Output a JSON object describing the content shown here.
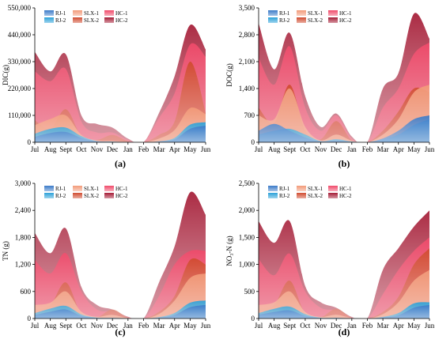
{
  "figure": {
    "months": [
      "Jul",
      "Aug",
      "Sept",
      "Oct",
      "Nov",
      "Dec",
      "Jan",
      "Feb",
      "Mar",
      "Apr",
      "May",
      "Jun"
    ],
    "legend": [
      "RJ-1",
      "RJ-2",
      "SLX-1",
      "SLX-2",
      "HC-1",
      "HC-2"
    ],
    "series_colors": {
      "RJ-1": "#3a7ac8",
      "RJ-2": "#2aa0d8",
      "SLX-1": "#f29a78",
      "SLX-2": "#d04a2e",
      "HC-1": "#f04a6a",
      "HC-2": "#a41a34"
    }
  },
  "chart_data": [
    {
      "type": "area",
      "panel_label": "(a)",
      "ylabel": "DIC(g)",
      "ylim": [
        0,
        550000
      ],
      "yticks": [
        "0",
        "110,000",
        "220,000",
        "330,000",
        "440,000",
        "550,000"
      ],
      "x": [
        "Jul",
        "Aug",
        "Sept",
        "Oct",
        "Nov",
        "Dec",
        "Jan",
        "Feb",
        "Mar",
        "Apr",
        "May",
        "Jun"
      ],
      "series": [
        {
          "name": "RJ-1",
          "values": [
            22000,
            38000,
            42000,
            18000,
            4000,
            2000,
            1000,
            0,
            3000,
            12000,
            55000,
            68000
          ]
        },
        {
          "name": "RJ-2",
          "values": [
            35000,
            55000,
            60000,
            25000,
            5000,
            3000,
            1000,
            0,
            4000,
            18000,
            72000,
            82000
          ]
        },
        {
          "name": "SLX-1",
          "values": [
            70000,
            95000,
            110000,
            30000,
            8000,
            6000,
            2000,
            0,
            15000,
            50000,
            140000,
            115000
          ]
        },
        {
          "name": "SLX-2",
          "values": [
            90000,
            55000,
            135000,
            25000,
            10000,
            30000,
            5000,
            0,
            30000,
            85000,
            330000,
            120000
          ]
        },
        {
          "name": "HC-1",
          "values": [
            290000,
            250000,
            300000,
            85000,
            40000,
            40000,
            10000,
            0,
            100000,
            200000,
            400000,
            350000
          ]
        },
        {
          "name": "HC-2",
          "values": [
            370000,
            290000,
            360000,
            110000,
            75000,
            60000,
            15000,
            0,
            120000,
            270000,
            480000,
            380000
          ]
        }
      ]
    },
    {
      "type": "area",
      "panel_label": "(b)",
      "ylabel": "DOC(g)",
      "ylim": [
        0,
        3500
      ],
      "yticks": [
        "0",
        "700",
        "1,400",
        "2,100",
        "2,800",
        "3,500"
      ],
      "x": [
        "Jul",
        "Aug",
        "Sept",
        "Oct",
        "Nov",
        "Dec",
        "Jan",
        "Feb",
        "Mar",
        "Apr",
        "May",
        "Jun"
      ],
      "series": [
        {
          "name": "RJ-1",
          "values": [
            300,
            480,
            300,
            130,
            20,
            50,
            10,
            0,
            100,
            300,
            600,
            700
          ]
        },
        {
          "name": "RJ-2",
          "values": [
            200,
            300,
            350,
            200,
            30,
            80,
            20,
            0,
            80,
            200,
            450,
            600
          ]
        },
        {
          "name": "SLX-1",
          "values": [
            700,
            600,
            1400,
            400,
            50,
            200,
            40,
            0,
            200,
            600,
            1300,
            1500
          ]
        },
        {
          "name": "SLX-2",
          "values": [
            900,
            500,
            1500,
            300,
            80,
            550,
            50,
            0,
            300,
            800,
            1400,
            1300
          ]
        },
        {
          "name": "HC-1",
          "values": [
            2200,
            1500,
            2500,
            900,
            300,
            700,
            100,
            0,
            900,
            1400,
            2300,
            2600
          ]
        },
        {
          "name": "HC-2",
          "values": [
            3100,
            1900,
            2850,
            1200,
            400,
            750,
            150,
            0,
            1400,
            1800,
            3350,
            2700
          ]
        }
      ]
    },
    {
      "type": "area",
      "panel_label": "(c)",
      "ylabel": "TN (g)",
      "ylim": [
        0,
        3000
      ],
      "yticks": [
        "0",
        "600",
        "1,200",
        "1,800",
        "2,400",
        "3,000"
      ],
      "x": [
        "Jul",
        "Aug",
        "Sept",
        "Oct",
        "Nov",
        "Dec",
        "Jan",
        "Feb",
        "Mar",
        "Apr",
        "May",
        "Jun"
      ],
      "series": [
        {
          "name": "RJ-1",
          "values": [
            80,
            150,
            200,
            60,
            15,
            10,
            5,
            0,
            20,
            80,
            250,
            300
          ]
        },
        {
          "name": "RJ-2",
          "values": [
            120,
            220,
            280,
            90,
            20,
            15,
            5,
            0,
            30,
            120,
            350,
            400
          ]
        },
        {
          "name": "SLX-1",
          "values": [
            300,
            350,
            600,
            150,
            40,
            80,
            10,
            0,
            100,
            400,
            900,
            1000
          ]
        },
        {
          "name": "SLX-2",
          "values": [
            200,
            300,
            800,
            100,
            30,
            200,
            20,
            0,
            150,
            500,
            1300,
            1200
          ]
        },
        {
          "name": "HC-1",
          "values": [
            1300,
            1000,
            1450,
            600,
            200,
            150,
            30,
            0,
            500,
            1200,
            1500,
            1500
          ]
        },
        {
          "name": "HC-2",
          "values": [
            1900,
            1450,
            2000,
            700,
            300,
            200,
            40,
            0,
            800,
            1600,
            2800,
            2300
          ]
        }
      ]
    },
    {
      "type": "area",
      "panel_label": "(d)",
      "ylabel": "NO₃-N (g)",
      "ylim": [
        0,
        2500
      ],
      "yticks": [
        "0",
        "500",
        "1,000",
        "1,500",
        "2,000",
        "2,500"
      ],
      "x": [
        "Jul",
        "Aug",
        "Sept",
        "Oct",
        "Nov",
        "Dec",
        "Jan",
        "Feb",
        "Mar",
        "Apr",
        "May",
        "Jun"
      ],
      "series": [
        {
          "name": "RJ-1",
          "values": [
            70,
            120,
            150,
            50,
            10,
            10,
            5,
            0,
            20,
            60,
            200,
            250
          ]
        },
        {
          "name": "RJ-2",
          "values": [
            100,
            180,
            220,
            80,
            15,
            15,
            5,
            0,
            30,
            100,
            280,
            300
          ]
        },
        {
          "name": "SLX-1",
          "values": [
            250,
            300,
            500,
            120,
            30,
            70,
            10,
            0,
            80,
            300,
            700,
            900
          ]
        },
        {
          "name": "SLX-2",
          "values": [
            180,
            250,
            700,
            90,
            25,
            180,
            15,
            0,
            120,
            400,
            1000,
            1300
          ]
        },
        {
          "name": "HC-1",
          "values": [
            1100,
            800,
            1200,
            500,
            200,
            150,
            20,
            0,
            450,
            900,
            1250,
            1500
          ]
        },
        {
          "name": "HC-2",
          "values": [
            1800,
            1400,
            1800,
            600,
            300,
            200,
            30,
            0,
            900,
            1300,
            1700,
            2000
          ]
        }
      ]
    }
  ]
}
